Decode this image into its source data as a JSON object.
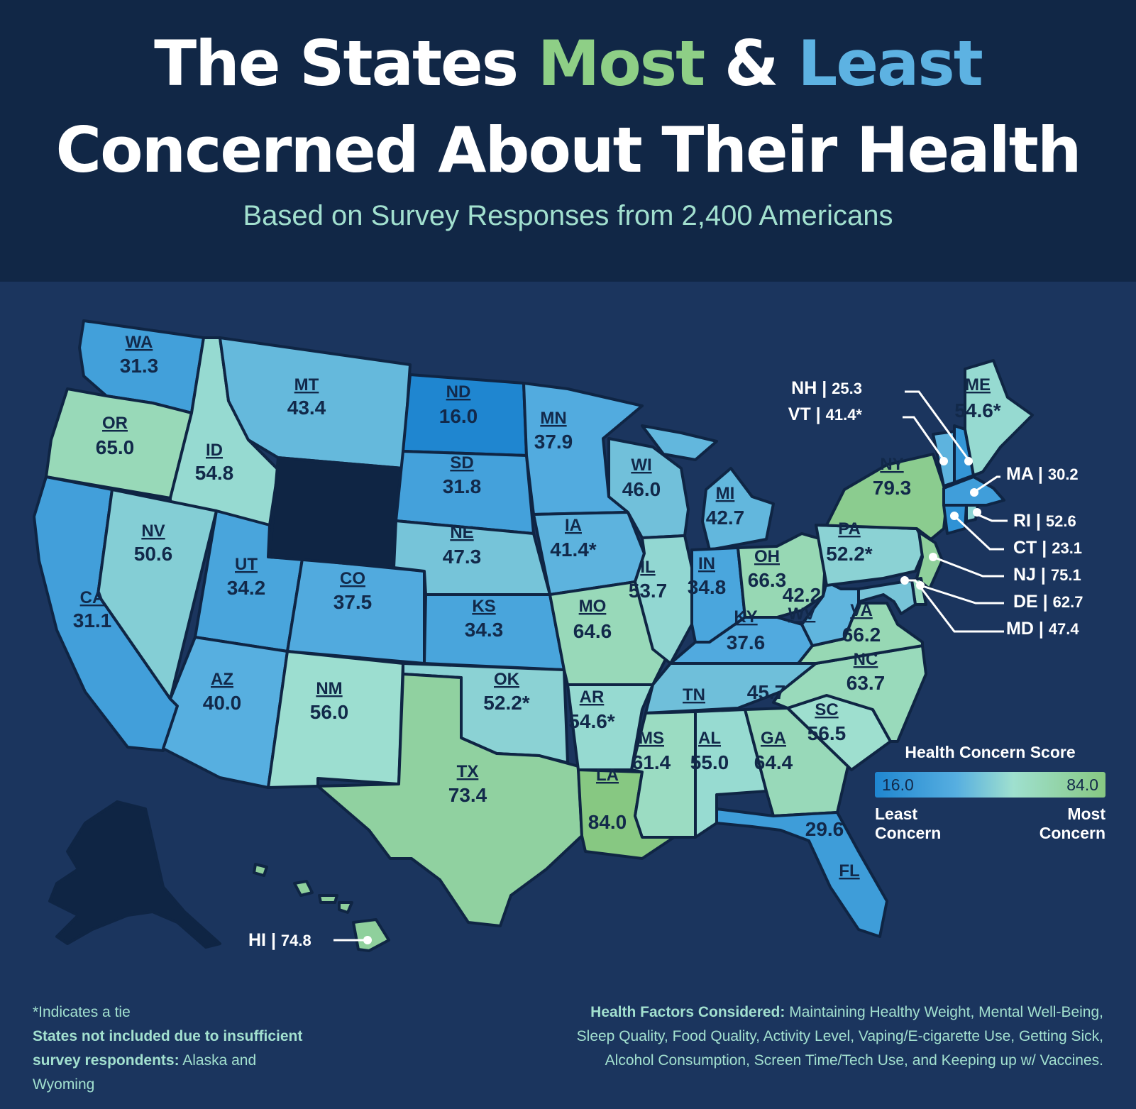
{
  "header": {
    "title_part1": "The States ",
    "title_most": "Most",
    "title_amp": " & ",
    "title_least": "Least",
    "title_line2": "Concerned About Their Health",
    "subtitle": "Based on Survey Responses from 2,400 Americans"
  },
  "colors": {
    "header_bg": "#112746",
    "map_bg": "#1b355e",
    "most_accent": "#8ecf86",
    "least_accent": "#5db2e2",
    "subtitle": "#a2e0cf",
    "excluded_state": "#0f2544"
  },
  "legend": {
    "title": "Health Concern Score",
    "min": "16.0",
    "max": "84.0",
    "min_label_line1": "Least",
    "min_label_line2": "Concern",
    "max_label_line1": "Most",
    "max_label_line2": "Concern"
  },
  "states": {
    "WA": {
      "abbr": "WA",
      "score": 31.3,
      "label": "31.3"
    },
    "OR": {
      "abbr": "OR",
      "score": 65.0,
      "label": "65.0"
    },
    "CA": {
      "abbr": "CA",
      "score": 31.1,
      "label": "31.1"
    },
    "ID": {
      "abbr": "ID",
      "score": 54.8,
      "label": "54.8"
    },
    "NV": {
      "abbr": "NV",
      "score": 50.6,
      "label": "50.6"
    },
    "MT": {
      "abbr": "MT",
      "score": 43.4,
      "label": "43.4"
    },
    "UT": {
      "abbr": "UT",
      "score": 34.2,
      "label": "34.2"
    },
    "AZ": {
      "abbr": "AZ",
      "score": 40.0,
      "label": "40.0"
    },
    "CO": {
      "abbr": "CO",
      "score": 37.5,
      "label": "37.5"
    },
    "NM": {
      "abbr": "NM",
      "score": 56.0,
      "label": "56.0"
    },
    "ND": {
      "abbr": "ND",
      "score": 16.0,
      "label": "16.0"
    },
    "SD": {
      "abbr": "SD",
      "score": 31.8,
      "label": "31.8"
    },
    "NE": {
      "abbr": "NE",
      "score": 47.3,
      "label": "47.3"
    },
    "KS": {
      "abbr": "KS",
      "score": 34.3,
      "label": "34.3"
    },
    "OK": {
      "abbr": "OK",
      "score": 52.2,
      "label": "52.2*"
    },
    "TX": {
      "abbr": "TX",
      "score": 73.4,
      "label": "73.4"
    },
    "MN": {
      "abbr": "MN",
      "score": 37.9,
      "label": "37.9"
    },
    "IA": {
      "abbr": "IA",
      "score": 41.4,
      "label": "41.4*"
    },
    "MO": {
      "abbr": "MO",
      "score": 64.6,
      "label": "64.6"
    },
    "AR": {
      "abbr": "AR",
      "score": 54.6,
      "label": "54.6*"
    },
    "LA": {
      "abbr": "LA",
      "score": 84.0,
      "label": "84.0"
    },
    "WI": {
      "abbr": "WI",
      "score": 46.0,
      "label": "46.0"
    },
    "IL": {
      "abbr": "IL",
      "score": 53.7,
      "label": "53.7"
    },
    "MI": {
      "abbr": "MI",
      "score": 42.7,
      "label": "42.7"
    },
    "IN": {
      "abbr": "IN",
      "score": 34.8,
      "label": "34.8"
    },
    "OH": {
      "abbr": "OH",
      "score": 66.3,
      "label": "66.3"
    },
    "KY": {
      "abbr": "KY",
      "score": 37.6,
      "label": "37.6"
    },
    "TN": {
      "abbr": "TN",
      "score": 45.7,
      "label": "45.7"
    },
    "MS": {
      "abbr": "MS",
      "score": 61.4,
      "label": "61.4"
    },
    "AL": {
      "abbr": "AL",
      "score": 55.0,
      "label": "55.0"
    },
    "GA": {
      "abbr": "GA",
      "score": 64.4,
      "label": "64.4"
    },
    "FL": {
      "abbr": "FL",
      "score": 29.6,
      "label": "29.6"
    },
    "SC": {
      "abbr": "SC",
      "score": 56.5,
      "label": "56.5"
    },
    "NC": {
      "abbr": "NC",
      "score": 63.7,
      "label": "63.7"
    },
    "VA": {
      "abbr": "VA",
      "score": 66.2,
      "label": "66.2"
    },
    "WV": {
      "abbr": "WV",
      "score": 42.2,
      "label": "42.2"
    },
    "PA": {
      "abbr": "PA",
      "score": 52.2,
      "label": "52.2*"
    },
    "NY": {
      "abbr": "NY",
      "score": 79.3,
      "label": "79.3"
    },
    "ME": {
      "abbr": "ME",
      "score": 54.6,
      "label": "54.6*"
    },
    "NH": {
      "abbr": "NH",
      "score": 25.3,
      "label": "25.3"
    },
    "VT": {
      "abbr": "VT",
      "score": 41.4,
      "label": "41.4*"
    },
    "MA": {
      "abbr": "MA",
      "score": 30.2,
      "label": "30.2"
    },
    "RI": {
      "abbr": "RI",
      "score": 52.6,
      "label": "52.6"
    },
    "CT": {
      "abbr": "CT",
      "score": 23.1,
      "label": "23.1"
    },
    "NJ": {
      "abbr": "NJ",
      "score": 75.1,
      "label": "75.1"
    },
    "DE": {
      "abbr": "DE",
      "score": 62.7,
      "label": "62.7"
    },
    "MD": {
      "abbr": "MD",
      "score": 47.4,
      "label": "47.4"
    },
    "HI": {
      "abbr": "HI",
      "score": 74.8,
      "label": "74.8"
    }
  },
  "footer": {
    "tie_note": "*Indicates a tie",
    "excluded_bold": "States not included due to insufficient survey respondents:",
    "excluded_states": " Alaska and Wyoming",
    "factors_bold": "Health Factors Considered:",
    "factors_text": " Maintaining Healthy Weight, Mental Well-Being, Sleep Quality, Food Quality, Activity Level, Vaping/E-cigarette Use, Getting Sick, Alcohol Consumption, Screen Time/Tech Use, and Keeping up w/ Vaccines."
  }
}
